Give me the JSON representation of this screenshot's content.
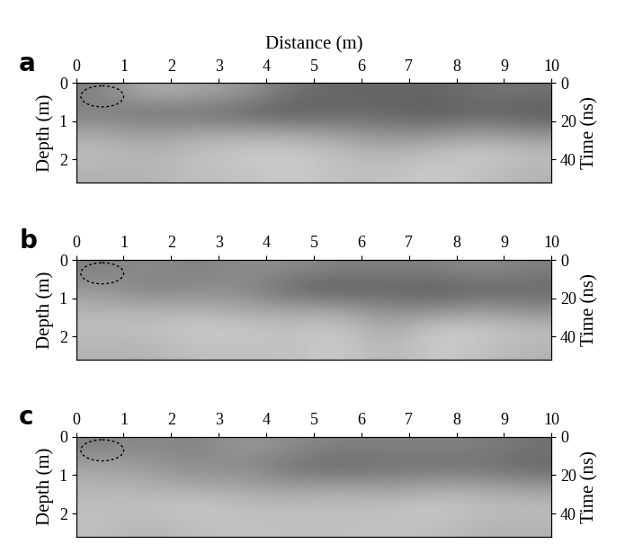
{
  "chart_data": [
    {
      "type": "heatmap",
      "title": "a",
      "xlabel": "Distance (m)",
      "ylabel": "Depth (m)",
      "y2label": "Time (ns)",
      "xlim": [
        0,
        10
      ],
      "xticks": [
        0,
        1,
        2,
        3,
        4,
        5,
        6,
        7,
        8,
        9,
        10
      ],
      "ylim": [
        0,
        2.6
      ],
      "yticks": [
        0,
        1,
        2
      ],
      "y2lim": [
        0,
        52
      ],
      "y2ticks": [
        0,
        20,
        40
      ],
      "cell_range": [
        0,
        1
      ],
      "cells": [
        [
          0.5,
          0.3,
          0.35,
          0.4,
          0.55,
          0.6,
          0.6,
          0.6,
          0.55,
          0.55
        ],
        [
          0.5,
          0.55,
          0.55,
          0.6,
          0.65,
          0.6,
          0.6,
          0.65,
          0.6,
          0.65
        ],
        [
          0.35,
          0.4,
          0.35,
          0.35,
          0.35,
          0.4,
          0.45,
          0.45,
          0.4,
          0.45
        ],
        [
          0.25,
          0.3,
          0.25,
          0.2,
          0.2,
          0.25,
          0.3,
          0.25,
          0.2,
          0.25
        ],
        [
          0.3,
          0.3,
          0.25,
          0.25,
          0.2,
          0.25,
          0.25,
          0.2,
          0.25,
          0.3
        ]
      ]
    },
    {
      "type": "heatmap",
      "title": "b",
      "ylabel": "Depth (m)",
      "y2label": "Time (ns)",
      "xlim": [
        0,
        10
      ],
      "xticks": [
        0,
        1,
        2,
        3,
        4,
        5,
        6,
        7,
        8,
        9,
        10
      ],
      "ylim": [
        0,
        2.6
      ],
      "yticks": [
        0,
        1,
        2
      ],
      "y2lim": [
        0,
        52
      ],
      "y2ticks": [
        0,
        20,
        40
      ],
      "cell_range": [
        0,
        1
      ],
      "cells": [
        [
          0.5,
          0.45,
          0.5,
          0.45,
          0.45,
          0.5,
          0.5,
          0.5,
          0.45,
          0.5
        ],
        [
          0.4,
          0.5,
          0.45,
          0.45,
          0.6,
          0.65,
          0.6,
          0.65,
          0.6,
          0.6
        ],
        [
          0.3,
          0.3,
          0.3,
          0.35,
          0.35,
          0.35,
          0.45,
          0.45,
          0.4,
          0.45
        ],
        [
          0.25,
          0.25,
          0.2,
          0.2,
          0.25,
          0.2,
          0.35,
          0.2,
          0.2,
          0.25
        ],
        [
          0.3,
          0.3,
          0.25,
          0.25,
          0.25,
          0.2,
          0.3,
          0.2,
          0.25,
          0.3
        ]
      ]
    },
    {
      "type": "heatmap",
      "title": "c",
      "ylabel": "Depth (m)",
      "y2label": "Time (ns)",
      "xlim": [
        0,
        10
      ],
      "xticks": [
        0,
        1,
        2,
        3,
        4,
        5,
        6,
        7,
        8,
        9,
        10
      ],
      "ylim": [
        0,
        2.6
      ],
      "yticks": [
        0,
        1,
        2
      ],
      "y2lim": [
        0,
        52
      ],
      "y2ticks": [
        0,
        20,
        40
      ],
      "cell_range": [
        0,
        1
      ],
      "cells": [
        [
          0.5,
          0.45,
          0.5,
          0.4,
          0.45,
          0.5,
          0.5,
          0.5,
          0.5,
          0.55
        ],
        [
          0.35,
          0.4,
          0.45,
          0.45,
          0.55,
          0.6,
          0.55,
          0.55,
          0.55,
          0.6
        ],
        [
          0.3,
          0.3,
          0.35,
          0.35,
          0.4,
          0.35,
          0.4,
          0.35,
          0.35,
          0.4
        ],
        [
          0.25,
          0.25,
          0.2,
          0.25,
          0.25,
          0.25,
          0.25,
          0.2,
          0.25,
          0.25
        ],
        [
          0.25,
          0.3,
          0.25,
          0.25,
          0.25,
          0.25,
          0.25,
          0.25,
          0.3,
          0.3
        ]
      ]
    }
  ]
}
